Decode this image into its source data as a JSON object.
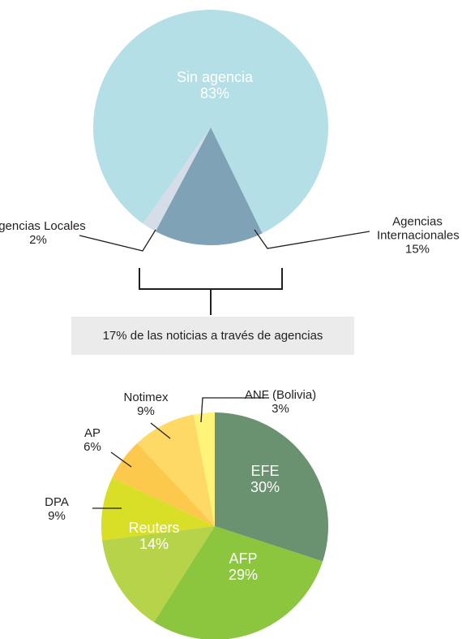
{
  "chart_data": [
    {
      "type": "pie",
      "categories": [
        "Agencias Internacionales",
        "Agencias Locales",
        "Sin agencia"
      ],
      "values": [
        15,
        2,
        83
      ],
      "value_labels": [
        "15%",
        "2%",
        "83%"
      ],
      "colors": [
        "#7fa2b6",
        "#d4dde8",
        "#b4dfe6"
      ],
      "annotation": "17% de las noticias a través de agencias"
    },
    {
      "type": "pie",
      "categories": [
        "EFE",
        "AFP",
        "Reuters",
        "DPA",
        "AP",
        "Notimex",
        "ANF (Bolivia)"
      ],
      "values": [
        30,
        29,
        14,
        9,
        6,
        9,
        3
      ],
      "value_labels": [
        "30%",
        "29%",
        "14%",
        "9%",
        "6%",
        "9%",
        "3%"
      ],
      "colors": [
        "#6a9170",
        "#8cc63f",
        "#b6d34a",
        "#d8df26",
        "#fdc94c",
        "#ffd966",
        "#fff37a"
      ]
    }
  ]
}
